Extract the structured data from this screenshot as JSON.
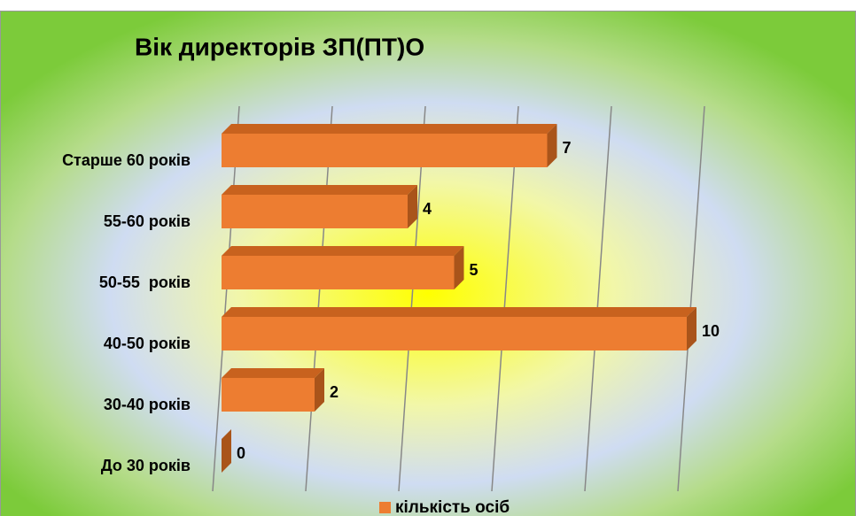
{
  "chart_data": {
    "type": "bar3d_horizontal",
    "title": "Вік директорів ЗП(ПТ)О",
    "categories": [
      "Старше 60 років",
      "55-60 років",
      "50-55  років",
      "40-50 років",
      "30-40 років",
      "До 30 років"
    ],
    "series": [
      {
        "name": "кількість осіб",
        "color": "#ed7d31",
        "values": [
          7,
          4,
          5,
          10,
          2,
          0
        ]
      }
    ],
    "xlim": [
      0,
      10
    ],
    "xticks": [
      0,
      2,
      4,
      6,
      8,
      10
    ],
    "grid": true,
    "legend": "bottom"
  }
}
